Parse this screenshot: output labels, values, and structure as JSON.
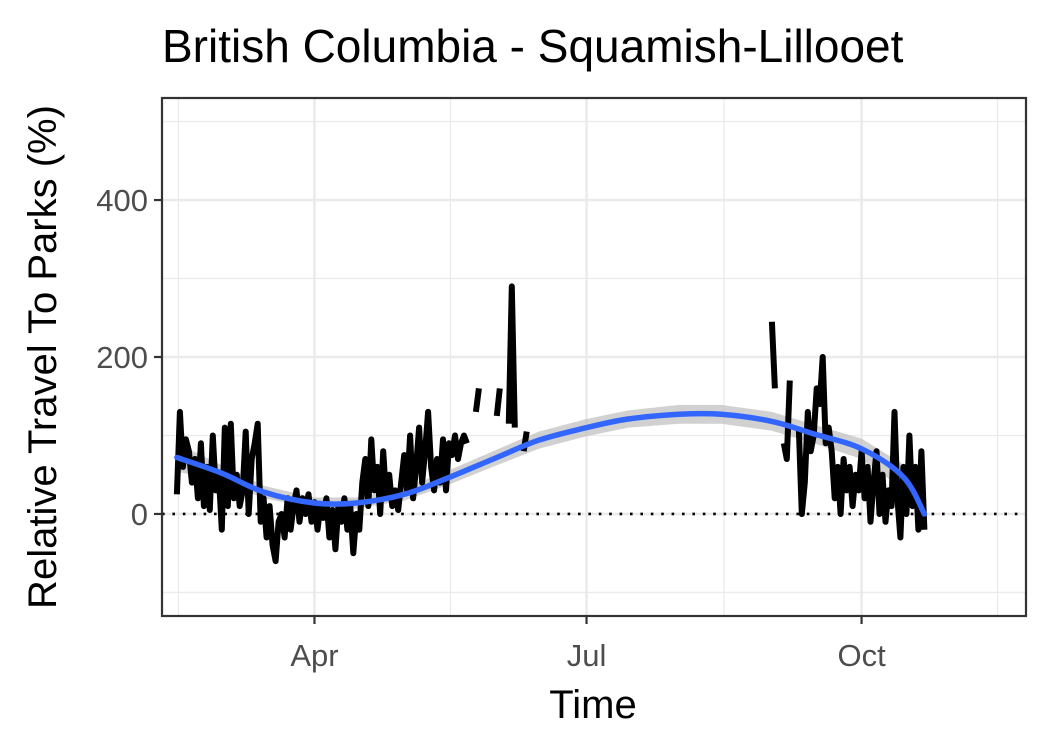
{
  "chart_data": {
    "type": "line",
    "title": "British Columbia - Squamish-Lillooet",
    "xlabel": "Time",
    "ylabel": "Relative Travel To Parks (%)",
    "x_ticks": [
      {
        "date": "2020-04-01",
        "label": "Apr"
      },
      {
        "date": "2020-07-01",
        "label": "Jul"
      },
      {
        "date": "2020-10-01",
        "label": "Oct"
      }
    ],
    "y_ticks": [
      0,
      200,
      400
    ],
    "xlim": [
      "2020-02-10",
      "2020-11-25"
    ],
    "ylim": [
      -130,
      530
    ],
    "grid": true,
    "reference_line": {
      "y": 0,
      "style": "dotted"
    },
    "colors": {
      "series": "#000000",
      "smooth": "#3366ff",
      "band": "#bdbdbd",
      "grid": "#ebebeb",
      "border": "#333333"
    },
    "series": [
      {
        "values": [
          {
            "x": "2020-02-15",
            "y": 25
          },
          {
            "x": "2020-02-16",
            "y": 130
          },
          {
            "x": "2020-02-17",
            "y": 60
          },
          {
            "x": "2020-02-18",
            "y": 95
          },
          {
            "x": "2020-02-19",
            "y": 80
          },
          {
            "x": "2020-02-20",
            "y": 40
          },
          {
            "x": "2020-02-21",
            "y": 70
          },
          {
            "x": "2020-02-22",
            "y": 20
          },
          {
            "x": "2020-02-23",
            "y": 90
          },
          {
            "x": "2020-02-24",
            "y": 10
          },
          {
            "x": "2020-02-25",
            "y": 60
          },
          {
            "x": "2020-02-26",
            "y": 5
          },
          {
            "x": "2020-02-27",
            "y": 100
          },
          {
            "x": "2020-02-28",
            "y": 30
          },
          {
            "x": "2020-02-29",
            "y": 50
          },
          {
            "x": "2020-03-01",
            "y": -20
          },
          {
            "x": "2020-03-02",
            "y": 110
          },
          {
            "x": "2020-03-03",
            "y": 10
          },
          {
            "x": "2020-03-04",
            "y": 115
          },
          {
            "x": "2020-03-05",
            "y": 20
          },
          {
            "x": "2020-03-06",
            "y": 50
          },
          {
            "x": "2020-03-07",
            "y": 10
          },
          {
            "x": "2020-03-08",
            "y": 30
          },
          {
            "x": "2020-03-09",
            "y": 105
          },
          {
            "x": "2020-03-10",
            "y": 0
          },
          {
            "x": "2020-03-11",
            "y": 70
          },
          {
            "x": "2020-03-12",
            "y": 90
          },
          {
            "x": "2020-03-13",
            "y": 115
          },
          {
            "x": "2020-03-14",
            "y": -10
          },
          {
            "x": "2020-03-15",
            "y": 20
          },
          {
            "x": "2020-03-16",
            "y": -30
          },
          {
            "x": "2020-03-17",
            "y": 10
          },
          {
            "x": "2020-03-18",
            "y": -40
          },
          {
            "x": "2020-03-19",
            "y": -60
          },
          {
            "x": "2020-03-20",
            "y": -10
          },
          {
            "x": "2020-03-21",
            "y": 0
          },
          {
            "x": "2020-03-22",
            "y": -30
          },
          {
            "x": "2020-03-23",
            "y": 20
          },
          {
            "x": "2020-03-24",
            "y": -20
          },
          {
            "x": "2020-03-25",
            "y": 10
          },
          {
            "x": "2020-03-26",
            "y": 30
          },
          {
            "x": "2020-03-27",
            "y": -10
          },
          {
            "x": "2020-03-28",
            "y": 20
          },
          {
            "x": "2020-03-29",
            "y": 0
          },
          {
            "x": "2020-03-30",
            "y": 25
          },
          {
            "x": "2020-03-31",
            "y": -10
          },
          {
            "x": "2020-04-01",
            "y": 15
          },
          {
            "x": "2020-04-02",
            "y": -20
          },
          {
            "x": "2020-04-03",
            "y": 10
          },
          {
            "x": "2020-04-04",
            "y": -5
          },
          {
            "x": "2020-04-05",
            "y": 20
          },
          {
            "x": "2020-04-06",
            "y": -30
          },
          {
            "x": "2020-04-07",
            "y": 5
          },
          {
            "x": "2020-04-08",
            "y": -45
          },
          {
            "x": "2020-04-09",
            "y": 10
          },
          {
            "x": "2020-04-10",
            "y": -10
          },
          {
            "x": "2020-04-11",
            "y": 20
          },
          {
            "x": "2020-04-12",
            "y": -20
          },
          {
            "x": "2020-04-13",
            "y": 10
          },
          {
            "x": "2020-04-14",
            "y": -50
          },
          {
            "x": "2020-04-15",
            "y": 0
          },
          {
            "x": "2020-04-16",
            "y": -20
          },
          {
            "x": "2020-04-17",
            "y": 40
          },
          {
            "x": "2020-04-18",
            "y": 70
          },
          {
            "x": "2020-04-19",
            "y": 10
          },
          {
            "x": "2020-04-20",
            "y": 95
          },
          {
            "x": "2020-04-21",
            "y": 30
          },
          {
            "x": "2020-04-22",
            "y": 60
          },
          {
            "x": "2020-04-23",
            "y": 0
          },
          {
            "x": "2020-04-24",
            "y": 80
          },
          {
            "x": "2020-04-25",
            "y": 20
          },
          {
            "x": "2020-04-26",
            "y": 50
          },
          {
            "x": "2020-04-27",
            "y": 10
          },
          {
            "x": "2020-04-28",
            "y": 30
          },
          {
            "x": "2020-04-29",
            "y": 5
          },
          {
            "x": "2020-04-30",
            "y": 40
          },
          {
            "x": "2020-05-01",
            "y": 75
          },
          {
            "x": "2020-05-02",
            "y": 30
          },
          {
            "x": "2020-05-03",
            "y": 100
          },
          {
            "x": "2020-05-04",
            "y": 20
          },
          {
            "x": "2020-05-05",
            "y": 60
          },
          {
            "x": "2020-05-06",
            "y": 110
          },
          {
            "x": "2020-05-07",
            "y": 40
          },
          {
            "x": "2020-05-08",
            "y": 80
          },
          {
            "x": "2020-05-09",
            "y": 130
          },
          {
            "x": "2020-05-10",
            "y": 60
          },
          {
            "x": "2020-05-11",
            "y": 30
          },
          {
            "x": "2020-05-12",
            "y": 70
          },
          {
            "x": "2020-05-13",
            "y": 40
          },
          {
            "x": "2020-05-14",
            "y": 95
          },
          {
            "x": "2020-05-15",
            "y": 30
          },
          {
            "x": "2020-05-16",
            "y": 90
          },
          {
            "x": "2020-05-17",
            "y": 75
          },
          {
            "x": "2020-05-18",
            "y": 100
          },
          {
            "x": "2020-05-19",
            "y": 70
          },
          {
            "x": "2020-05-20",
            "y": 90
          },
          {
            "x": "2020-05-21",
            "y": 100
          },
          {
            "x": "2020-05-22",
            "y": 90
          },
          {
            "x": "2020-05-25",
            "y": 130
          },
          {
            "x": "2020-05-26",
            "y": 160
          },
          {
            "x": "2020-06-01",
            "y": 125
          },
          {
            "x": "2020-06-02",
            "y": 160
          },
          {
            "x": "2020-06-05",
            "y": 115
          },
          {
            "x": "2020-06-06",
            "y": 290
          },
          {
            "x": "2020-06-07",
            "y": 110
          },
          {
            "x": "2020-06-10",
            "y": 80
          },
          {
            "x": "2020-06-11",
            "y": 105
          },
          {
            "x": "2020-09-01",
            "y": 245
          },
          {
            "x": "2020-09-02",
            "y": 160
          },
          {
            "x": "2020-09-05",
            "y": 90
          },
          {
            "x": "2020-09-06",
            "y": 70
          },
          {
            "x": "2020-09-07",
            "y": 170
          },
          {
            "x": "2020-09-10",
            "y": 110
          },
          {
            "x": "2020-09-11",
            "y": 0
          },
          {
            "x": "2020-09-12",
            "y": 40
          },
          {
            "x": "2020-09-13",
            "y": 130
          },
          {
            "x": "2020-09-14",
            "y": 80
          },
          {
            "x": "2020-09-15",
            "y": 100
          },
          {
            "x": "2020-09-16",
            "y": 160
          },
          {
            "x": "2020-09-17",
            "y": 140
          },
          {
            "x": "2020-09-18",
            "y": 200
          },
          {
            "x": "2020-09-19",
            "y": 90
          },
          {
            "x": "2020-09-20",
            "y": 110
          },
          {
            "x": "2020-09-21",
            "y": 80
          },
          {
            "x": "2020-09-22",
            "y": 20
          },
          {
            "x": "2020-09-23",
            "y": 60
          },
          {
            "x": "2020-09-24",
            "y": 0
          },
          {
            "x": "2020-09-25",
            "y": 70
          },
          {
            "x": "2020-09-26",
            "y": 30
          },
          {
            "x": "2020-09-27",
            "y": 60
          },
          {
            "x": "2020-09-28",
            "y": 10
          },
          {
            "x": "2020-09-29",
            "y": 50
          },
          {
            "x": "2020-09-30",
            "y": 30
          },
          {
            "x": "2020-10-01",
            "y": 80
          },
          {
            "x": "2020-10-02",
            "y": 20
          },
          {
            "x": "2020-10-03",
            "y": 60
          },
          {
            "x": "2020-10-04",
            "y": -10
          },
          {
            "x": "2020-10-05",
            "y": 40
          },
          {
            "x": "2020-10-06",
            "y": 80
          },
          {
            "x": "2020-10-07",
            "y": 0
          },
          {
            "x": "2020-10-08",
            "y": 50
          },
          {
            "x": "2020-10-09",
            "y": -10
          },
          {
            "x": "2020-10-10",
            "y": 30
          },
          {
            "x": "2020-10-11",
            "y": 10
          },
          {
            "x": "2020-10-12",
            "y": 130
          },
          {
            "x": "2020-10-13",
            "y": 20
          },
          {
            "x": "2020-10-14",
            "y": -30
          },
          {
            "x": "2020-10-15",
            "y": 60
          },
          {
            "x": "2020-10-16",
            "y": 0
          },
          {
            "x": "2020-10-17",
            "y": 100
          },
          {
            "x": "2020-10-18",
            "y": 10
          },
          {
            "x": "2020-10-19",
            "y": 60
          },
          {
            "x": "2020-10-20",
            "y": -20
          },
          {
            "x": "2020-10-21",
            "y": 80
          },
          {
            "x": "2020-10-22",
            "y": -20
          }
        ]
      }
    ],
    "smooth": {
      "x": [
        "2020-02-15",
        "2020-03-01",
        "2020-03-15",
        "2020-04-01",
        "2020-04-15",
        "2020-05-01",
        "2020-05-15",
        "2020-06-01",
        "2020-06-15",
        "2020-07-01",
        "2020-07-15",
        "2020-08-01",
        "2020-08-15",
        "2020-09-01",
        "2020-09-15",
        "2020-10-01",
        "2020-10-15",
        "2020-10-22"
      ],
      "y": [
        72,
        52,
        28,
        14,
        14,
        25,
        45,
        72,
        94,
        110,
        121,
        127,
        127,
        118,
        102,
        83,
        47,
        0
      ],
      "band": [
        18,
        10,
        8,
        7,
        7,
        8,
        9,
        10,
        11,
        11,
        11,
        12,
        12,
        12,
        12,
        13,
        16,
        20
      ]
    }
  }
}
